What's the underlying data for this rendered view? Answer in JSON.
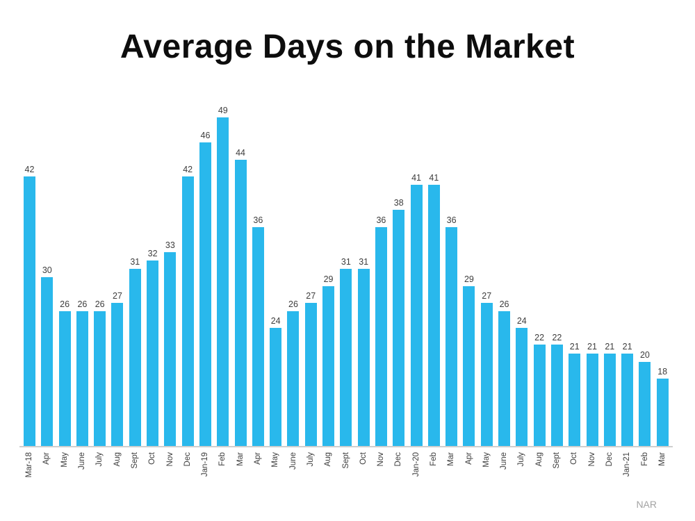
{
  "title": "Average Days on the Market",
  "source": "NAR",
  "chart_data": {
    "type": "bar",
    "title": "Average Days on the Market",
    "categories": [
      "Mar-18",
      "Apr",
      "May",
      "June",
      "July",
      "Aug",
      "Sept",
      "Oct",
      "Nov",
      "Dec",
      "Jan-19",
      "Feb",
      "Mar",
      "Apr",
      "May",
      "June",
      "July",
      "Aug",
      "Sept",
      "Oct",
      "Nov",
      "Dec",
      "Jan-20",
      "Feb",
      "Mar",
      "Apr",
      "May",
      "June",
      "July",
      "Aug",
      "Sept",
      "Oct",
      "Nov",
      "Dec",
      "Jan-21",
      "Feb",
      "Mar"
    ],
    "values": [
      42,
      30,
      26,
      26,
      26,
      27,
      31,
      32,
      33,
      42,
      46,
      49,
      44,
      36,
      24,
      26,
      27,
      29,
      31,
      31,
      36,
      38,
      41,
      41,
      36,
      29,
      27,
      26,
      24,
      22,
      22,
      21,
      21,
      21,
      21,
      20,
      18
    ],
    "ylim": [
      10,
      49
    ],
    "grid": false,
    "legend": "none",
    "data_labels": true,
    "xlabel": "",
    "ylabel": "",
    "bar_color": "#29B8EC",
    "source": "NAR"
  }
}
